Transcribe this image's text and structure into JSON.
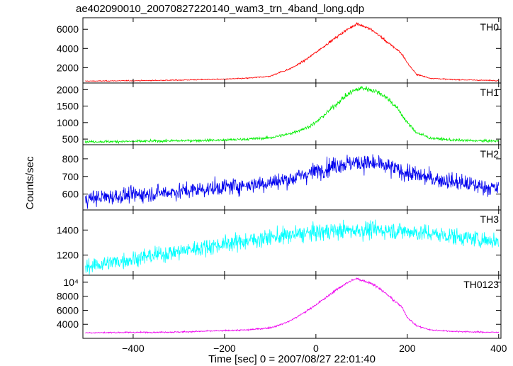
{
  "title": "ae402090010_20070827220140_wam3_trn_4band_long.qdp",
  "ylabel": "Counts/sec",
  "xlabel": "Time [sec] 0 = 2007/08/27 22:01:40",
  "chart_data": {
    "type": "line",
    "title": "ae402090010_20070827220140_wam3_trn_4band_long.qdp",
    "xlabel": "Time [sec] 0 = 2007/08/27 22:01:40",
    "ylabel": "Counts/sec",
    "xlim": [
      -510,
      405
    ],
    "x_ticks": [
      -400,
      -200,
      0,
      200,
      400
    ],
    "grid": false,
    "panels": [
      {
        "name": "TH0",
        "color": "#ff0000",
        "ylim": [
          400,
          7200
        ],
        "y_ticks": [
          2000,
          4000,
          6000
        ],
        "y_tick_labels": [
          "2000",
          "4000",
          "6000"
        ],
        "x": [
          -500,
          -400,
          -300,
          -200,
          -150,
          -100,
          -80,
          -60,
          -40,
          -20,
          0,
          20,
          40,
          60,
          80,
          90,
          100,
          120,
          140,
          160,
          180,
          190,
          200,
          220,
          250,
          300,
          350,
          400
        ],
        "values": [
          600,
          640,
          700,
          800,
          900,
          1100,
          1500,
          1800,
          2300,
          2900,
          3600,
          4300,
          5000,
          5700,
          6300,
          6600,
          6400,
          6000,
          5300,
          4500,
          3800,
          3300,
          2500,
          1300,
          900,
          750,
          700,
          650
        ]
      },
      {
        "name": "TH1",
        "color": "#00ee00",
        "ylim": [
          330,
          2200
        ],
        "y_ticks": [
          500,
          1000,
          1500,
          2000
        ],
        "y_tick_labels": [
          "500",
          "1000",
          "1500",
          "2000"
        ],
        "x": [
          -500,
          -400,
          -300,
          -200,
          -150,
          -100,
          -60,
          -20,
          0,
          20,
          40,
          60,
          80,
          100,
          120,
          140,
          160,
          180,
          200,
          220,
          250,
          300,
          350,
          400
        ],
        "values": [
          420,
          430,
          450,
          470,
          500,
          540,
          650,
          850,
          1000,
          1250,
          1500,
          1750,
          1950,
          2050,
          2000,
          1900,
          1700,
          1400,
          1000,
          700,
          530,
          470,
          450,
          440
        ]
      },
      {
        "name": "TH2",
        "color": "#0000ee",
        "ylim": [
          510,
          880
        ],
        "y_ticks": [
          600,
          700,
          800
        ],
        "y_tick_labels": [
          "600",
          "700",
          "800"
        ],
        "x": [
          -500,
          -400,
          -300,
          -200,
          -100,
          -50,
          0,
          50,
          100,
          150,
          200,
          250,
          300,
          350,
          400
        ],
        "values": [
          575,
          595,
          615,
          640,
          665,
          690,
          730,
          770,
          780,
          760,
          720,
          690,
          670,
          650,
          630
        ]
      },
      {
        "name": "TH3",
        "color": "#00ffff",
        "ylim": [
          1040,
          1560
        ],
        "y_ticks": [
          1200,
          1400
        ],
        "y_tick_labels": [
          "1200",
          "1400"
        ],
        "x": [
          -500,
          -400,
          -300,
          -200,
          -100,
          0,
          50,
          100,
          150,
          200,
          250,
          300,
          350,
          400
        ],
        "values": [
          1110,
          1170,
          1230,
          1290,
          1340,
          1380,
          1395,
          1400,
          1400,
          1390,
          1370,
          1350,
          1330,
          1310
        ]
      },
      {
        "name": "TH0123",
        "color": "#ee00ee",
        "ylim": [
          2000,
          11000
        ],
        "y_ticks": [
          4000,
          6000,
          8000,
          10000
        ],
        "y_tick_labels": [
          "4000",
          "6000",
          "8000",
          "10⁴"
        ],
        "x": [
          -500,
          -400,
          -300,
          -200,
          -150,
          -100,
          -80,
          -60,
          -40,
          -20,
          0,
          20,
          40,
          60,
          80,
          90,
          100,
          120,
          140,
          160,
          180,
          190,
          200,
          220,
          250,
          300,
          350,
          400
        ],
        "values": [
          2800,
          2850,
          2900,
          3100,
          3200,
          3500,
          3900,
          4400,
          5100,
          5900,
          6800,
          7700,
          8700,
          9600,
          10300,
          10500,
          10300,
          9900,
          9100,
          8000,
          6900,
          6300,
          5000,
          3800,
          3200,
          3000,
          2900,
          2850
        ]
      }
    ]
  }
}
